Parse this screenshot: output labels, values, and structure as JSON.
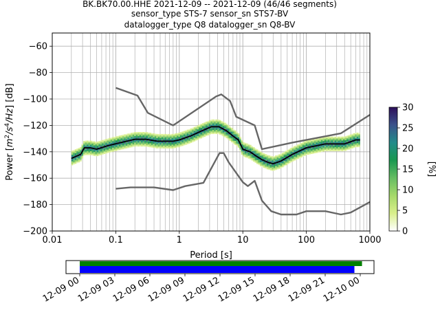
{
  "title": {
    "line1": "BK.BK70.00.HHE   2021-12-09 -- 2021-12-09  (46/46 segments)",
    "line2": "sensor_type STS-7 sensor_sn STS7-BV",
    "line3": "datalogger_type Q8 datalogger_sn Q8-BV"
  },
  "chart_data": [
    {
      "type": "heatmap",
      "subtype": "probabilistic-power-spectral-density",
      "xlabel": "Period [s]",
      "ylabel": "Power [m²/s⁴/Hz] [dB]",
      "ylabel_parts": {
        "prefix": "Power [",
        "m": "m",
        "exp2": "2",
        "s": "/s",
        "exp4": "4",
        "hz": "/Hz",
        "suffix": "] [dB]"
      },
      "xscale": "log",
      "xlim": [
        0.01,
        1000
      ],
      "ylim": [
        -200,
        -50
      ],
      "x_ticks": [
        0.01,
        0.1,
        1,
        10,
        100,
        1000
      ],
      "x_tick_labels": [
        "0.01",
        "0.1",
        "1",
        "10",
        "100",
        "1000"
      ],
      "y_ticks": [
        -200,
        -180,
        -160,
        -140,
        -120,
        -100,
        -80,
        -60
      ],
      "y_tick_labels": [
        "−200",
        "−180",
        "−160",
        "−140",
        "−120",
        "−100",
        "−80",
        "−60"
      ],
      "grid": true,
      "series": [
        {
          "style": "gray-line",
          "points": [
            [
              0.1,
              -91.5
            ],
            [
              0.22,
              -97.4
            ],
            [
              0.32,
              -110.5
            ],
            [
              0.8,
              -120
            ],
            [
              3.8,
              -98
            ],
            [
              4.6,
              -96.5
            ],
            [
              6.3,
              -101.5
            ],
            [
              7.9,
              -113.5
            ],
            [
              15.4,
              -120
            ],
            [
              20,
              -138
            ],
            [
              60,
              -133
            ],
            [
              350,
              -126
            ],
            [
              1000,
              -112
            ]
          ]
        },
        {
          "style": "gray-line",
          "points": [
            [
              0.1,
              -168
            ],
            [
              0.17,
              -167
            ],
            [
              0.4,
              -167
            ],
            [
              0.8,
              -169
            ],
            [
              1.24,
              -166
            ],
            [
              2.4,
              -163.5
            ],
            [
              4.3,
              -141
            ],
            [
              5,
              -141
            ],
            [
              6,
              -148
            ],
            [
              10,
              -163
            ],
            [
              12,
              -166
            ],
            [
              15.4,
              -162
            ],
            [
              20,
              -177
            ],
            [
              28,
              -185
            ],
            [
              40,
              -187.5
            ],
            [
              70,
              -187.5
            ],
            [
              100,
              -185
            ],
            [
              200,
              -185
            ],
            [
              350,
              -187.5
            ],
            [
              500,
              -186
            ],
            [
              1000,
              -178
            ]
          ]
        },
        {
          "style": "black-mean",
          "points": [
            [
              0.02,
              -145
            ],
            [
              0.028,
              -142
            ],
            [
              0.032,
              -137
            ],
            [
              0.04,
              -137
            ],
            [
              0.05,
              -138
            ],
            [
              0.08,
              -135
            ],
            [
              0.12,
              -133
            ],
            [
              0.2,
              -130.5
            ],
            [
              0.3,
              -130.5
            ],
            [
              0.45,
              -132
            ],
            [
              0.8,
              -132
            ],
            [
              1,
              -131
            ],
            [
              1.5,
              -128
            ],
            [
              2.3,
              -124
            ],
            [
              3.2,
              -121
            ],
            [
              4.2,
              -121
            ],
            [
              5.5,
              -124
            ],
            [
              7,
              -128
            ],
            [
              8.5,
              -131
            ],
            [
              10,
              -138
            ],
            [
              13,
              -140
            ],
            [
              16,
              -143
            ],
            [
              20,
              -146
            ],
            [
              25,
              -148
            ],
            [
              30,
              -149
            ],
            [
              40,
              -147
            ],
            [
              60,
              -142
            ],
            [
              100,
              -137
            ],
            [
              200,
              -134
            ],
            [
              400,
              -134
            ],
            [
              600,
              -131
            ],
            [
              700,
              -131
            ]
          ]
        }
      ],
      "density_band": {
        "x_range": [
          0.02,
          700
        ],
        "center_series_index": 2,
        "half_width_db": 5
      },
      "colorbar": {
        "label": "[%]",
        "ticks": [
          0,
          5,
          10,
          15,
          20,
          25,
          30
        ],
        "tick_labels": [
          "0",
          "5",
          "10",
          "15",
          "20",
          "25",
          "30"
        ],
        "range": [
          0,
          30
        ],
        "colormap": [
          "#ffffff",
          "#d9ef8b",
          "#a6d96a",
          "#66bd63",
          "#1a9850",
          "#238b8a",
          "#3b528b",
          "#2d0f5a"
        ]
      }
    },
    {
      "type": "timeline",
      "subtype": "data-coverage",
      "x_tick_labels": [
        "12-09 00",
        "12-09 03",
        "12-09 06",
        "12-09 09",
        "12-09 12",
        "12-09 15",
        "12-09 18",
        "12-09 21",
        "12-10 00"
      ],
      "coverage_green_hours": [
        0,
        24.15
      ],
      "coverage_blue_hours": [
        0,
        23.5
      ],
      "colors": {
        "green": "#008000",
        "blue": "#0000ff"
      }
    }
  ]
}
